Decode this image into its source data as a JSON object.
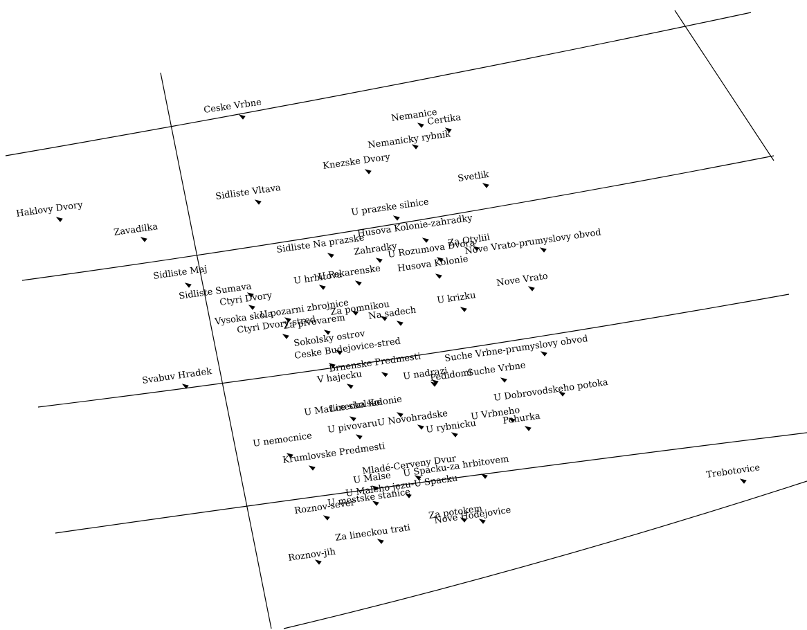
{
  "places": [
    {
      "name": "Ceske Vrbne"
    },
    {
      "name": "Nemanice"
    },
    {
      "name": "Certika"
    },
    {
      "name": "Nemanicky rybnik"
    },
    {
      "name": "Knezske Dvory"
    },
    {
      "name": "Svetlik"
    },
    {
      "name": "Haklovy Dvory"
    },
    {
      "name": "Sidliste Vltava"
    },
    {
      "name": "U prazske silnice"
    },
    {
      "name": "Zavadilka"
    },
    {
      "name": "Husova Kolonie-zahradky"
    },
    {
      "name": "Sidliste Na prazske"
    },
    {
      "name": "Za Otyliii"
    },
    {
      "name": "Nove Vrato-prumyslovy obvod"
    },
    {
      "name": "Zahradky"
    },
    {
      "name": "U Rozumova Dvora"
    },
    {
      "name": "Husova Kolonie"
    },
    {
      "name": "Sidliste Maj"
    },
    {
      "name": "U hrbitova"
    },
    {
      "name": "U Pekarenske"
    },
    {
      "name": "Nove Vrato"
    },
    {
      "name": "Sidliste Sumava"
    },
    {
      "name": "Ctyri Dvory"
    },
    {
      "name": "U krizku"
    },
    {
      "name": "Vysoka skola"
    },
    {
      "name": "U pozarni zbrojnice"
    },
    {
      "name": "Za pivovarem"
    },
    {
      "name": "Za pomnikou"
    },
    {
      "name": "Na sadech"
    },
    {
      "name": "Ctyri Dvory-stred"
    },
    {
      "name": "Sokolsky ostrov"
    },
    {
      "name": "Ceske Budejovice-stred"
    },
    {
      "name": "Suche Vrbne-prumyslovy obvod"
    },
    {
      "name": "Brnenske Predmesti"
    },
    {
      "name": "Svabuv Hradek"
    },
    {
      "name": "V hajecku"
    },
    {
      "name": "U nadrazi"
    },
    {
      "name": "Pedidomi"
    },
    {
      "name": "Suche Vrbne"
    },
    {
      "name": "U Dobrovodskeho potoka"
    },
    {
      "name": "U Matice skolske"
    },
    {
      "name": "Linecka Kolonie"
    },
    {
      "name": "U pivovaru"
    },
    {
      "name": "U Novohradske"
    },
    {
      "name": "U Vrbneho"
    },
    {
      "name": "U rybnicku"
    },
    {
      "name": "Pohurka"
    },
    {
      "name": "U nemocnice"
    },
    {
      "name": "Krumlovske Predmesti"
    },
    {
      "name": "Mladé-Cerveny Dvur"
    },
    {
      "name": "U Spacku-za hrbitovem"
    },
    {
      "name": "U Malse"
    },
    {
      "name": "U Maleho jezu-U Spacku"
    },
    {
      "name": "U mestske stanice"
    },
    {
      "name": "Roznov-sever"
    },
    {
      "name": "Trebotovice"
    },
    {
      "name": "Za potokem"
    },
    {
      "name": "Nove Hodejovice"
    },
    {
      "name": "Za lineckou trati"
    },
    {
      "name": "Roznov-jih"
    }
  ]
}
